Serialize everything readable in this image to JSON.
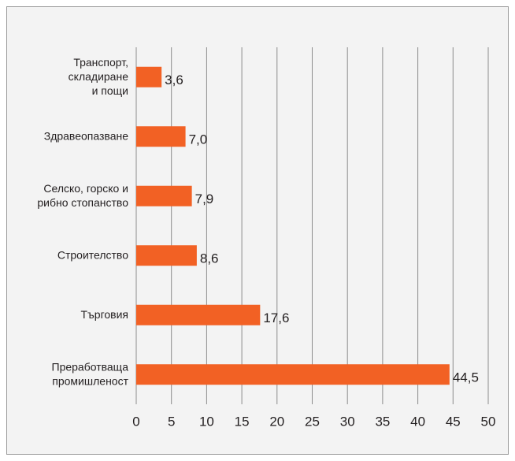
{
  "chart_data": {
    "type": "barh",
    "categories": [
      [
        "Транспорт,",
        "складиране",
        "и пощи"
      ],
      [
        "Здравеопазване"
      ],
      [
        "Селско, горско и",
        "рибно стопанство"
      ],
      [
        "Строителство"
      ],
      [
        "Търговия"
      ],
      [
        "Преработваща",
        "промишленост"
      ]
    ],
    "values": [
      3.6,
      7.0,
      7.9,
      8.6,
      17.6,
      44.5
    ],
    "value_labels": [
      "3,6",
      "7,0",
      "7,9",
      "8,6",
      "17,6",
      "44,5"
    ],
    "color": "#f26124",
    "xlim": [
      0,
      50
    ],
    "xticks": [
      0,
      5,
      10,
      15,
      20,
      25,
      30,
      35,
      40,
      45,
      50
    ],
    "grid": true
  }
}
